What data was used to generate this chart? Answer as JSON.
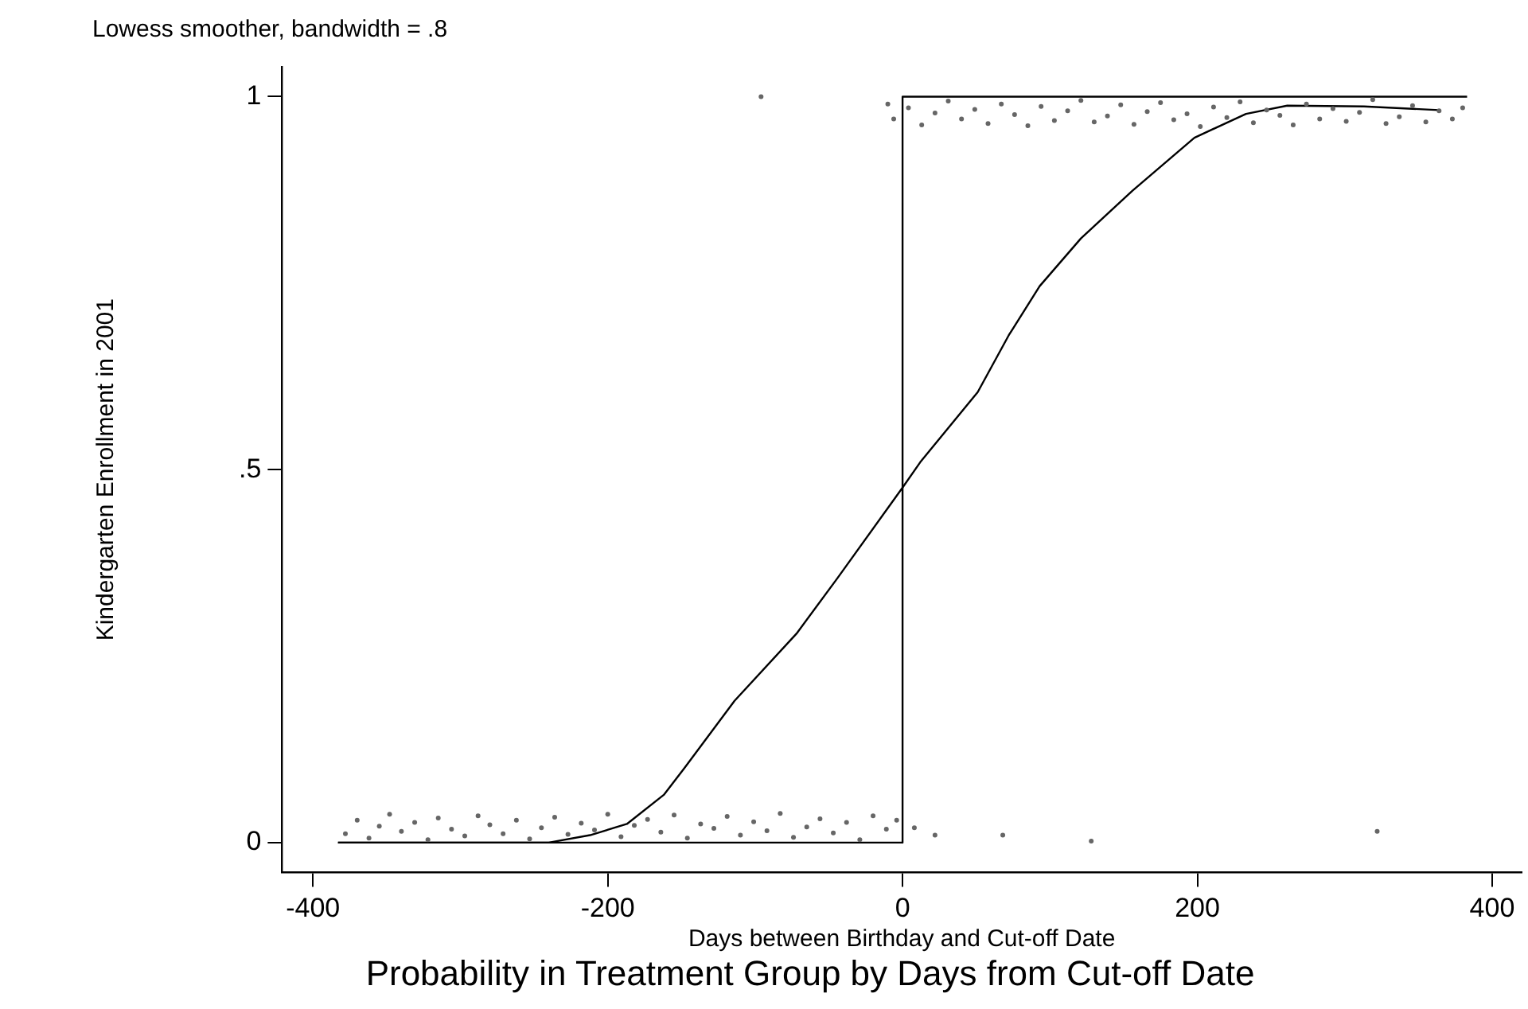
{
  "chart_data": {
    "type": "scatter",
    "title": "Probability in Treatment Group by Days from Cut-off Date",
    "subtitle": "Lowess smoother, bandwidth = .8",
    "xlabel": "Days between Birthday and Cut-off Date",
    "ylabel": "Kindergarten Enrollment in 2001",
    "xlim": [
      -421,
      420
    ],
    "xticks": [
      -400,
      -200,
      0,
      200,
      400
    ],
    "ylim": [
      -0.04,
      1.04
    ],
    "yticks": [
      0,
      {
        "value": 0.5,
        "label": ".5"
      },
      1
    ],
    "grid": false,
    "legend": false,
    "series": [
      {
        "type": "scatter",
        "marker": "circle",
        "color": "#666666",
        "x": [
          -378,
          -370,
          -362,
          -355,
          -348,
          -340,
          -331,
          -322,
          -315,
          -306,
          -297,
          -288,
          -280,
          -271,
          -262,
          -253,
          -245,
          -236,
          -227,
          -218,
          -209,
          -200,
          -191,
          -182,
          -173,
          -164,
          -155,
          -146,
          -137,
          -128,
          -119,
          -110,
          -101,
          -92,
          -83,
          -74,
          -65,
          -56,
          -47,
          -38,
          -29,
          -20,
          -11,
          -4,
          8,
          22,
          68,
          128,
          322
        ],
        "values": [
          0.012,
          0.03,
          0.006,
          0.022,
          0.038,
          0.015,
          0.027,
          0.004,
          0.033,
          0.018,
          0.009,
          0.036,
          0.024,
          0.012,
          0.03,
          0.005,
          0.02,
          0.034,
          0.011,
          0.026,
          0.017,
          0.038,
          0.008,
          0.023,
          0.031,
          0.014,
          0.037,
          0.006,
          0.025,
          0.019,
          0.035,
          0.01,
          0.028,
          0.016,
          0.039,
          0.007,
          0.021,
          0.032,
          0.013,
          0.027,
          0.004,
          0.036,
          0.018,
          0.03,
          0.02,
          0.01,
          0.01,
          0.002,
          0.015
        ]
      },
      {
        "type": "scatter",
        "marker": "circle",
        "color": "#666666",
        "x": [
          -96,
          -10,
          -6,
          4,
          13,
          22,
          31,
          40,
          49,
          58,
          67,
          76,
          85,
          94,
          103,
          112,
          121,
          130,
          139,
          148,
          157,
          166,
          175,
          184,
          193,
          202,
          211,
          220,
          229,
          238,
          247,
          256,
          265,
          274,
          283,
          292,
          301,
          310,
          319,
          328,
          337,
          346,
          355,
          364,
          373,
          380
        ],
        "values": [
          1.0,
          0.99,
          0.97,
          0.985,
          0.962,
          0.978,
          0.994,
          0.97,
          0.983,
          0.964,
          0.99,
          0.976,
          0.961,
          0.987,
          0.968,
          0.981,
          0.995,
          0.966,
          0.974,
          0.989,
          0.963,
          0.98,
          0.992,
          0.969,
          0.977,
          0.96,
          0.986,
          0.972,
          0.993,
          0.965,
          0.982,
          0.975,
          0.962,
          0.99,
          0.97,
          0.984,
          0.967,
          0.979,
          0.996,
          0.964,
          0.973,
          0.988,
          0.966,
          0.981,
          0.97,
          0.985
        ]
      },
      {
        "type": "line",
        "marker": "none",
        "line_style": "solid",
        "color": "#000000",
        "x": [
          -383,
          0,
          0,
          383
        ],
        "values": [
          0,
          0,
          1,
          1
        ]
      },
      {
        "type": "line",
        "marker": "none",
        "line_style": "solid",
        "color": "#000000",
        "x": [
          -383,
          -240,
          -212,
          -187,
          -162,
          -148,
          -114,
          -72,
          -44,
          0,
          12,
          51,
          72,
          93,
          121,
          156,
          198,
          233,
          261,
          313,
          364
        ],
        "values": [
          0,
          0,
          0.01,
          0.025,
          0.064,
          0.1,
          0.19,
          0.28,
          0.355,
          0.476,
          0.51,
          0.604,
          0.68,
          0.746,
          0.81,
          0.874,
          0.945,
          0.977,
          0.988,
          0.987,
          0.982
        ]
      }
    ]
  }
}
